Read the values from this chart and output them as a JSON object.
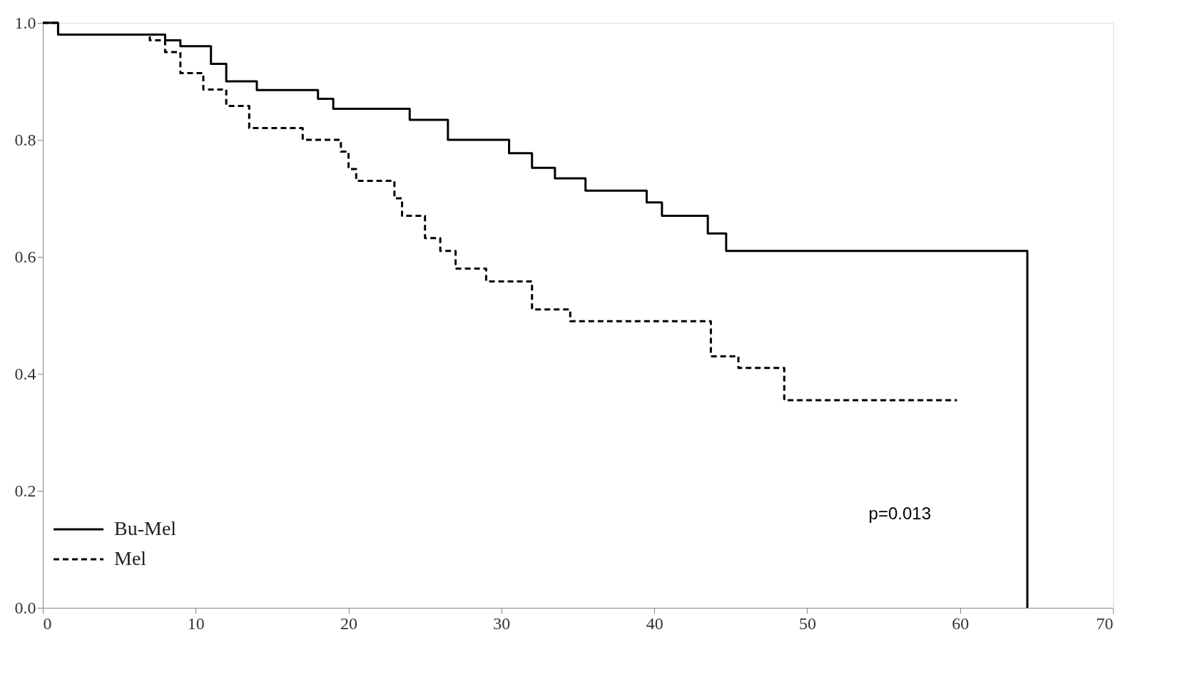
{
  "chart_data": {
    "type": "step",
    "xlim": [
      0,
      70
    ],
    "ylim": [
      0,
      1
    ],
    "xticks": [
      0,
      10,
      20,
      30,
      40,
      50,
      60,
      70
    ],
    "yticks": [
      {
        "value": 0,
        "label": "0.0"
      },
      {
        "value": 0.2,
        "label": "0.2"
      },
      {
        "value": 0.4,
        "label": "0.4"
      },
      {
        "value": 0.6,
        "label": "0.6"
      },
      {
        "value": 0.8,
        "label": "0.8"
      },
      {
        "value": 1,
        "label": "1.0"
      }
    ],
    "series": [
      {
        "name": "Bu-Mel",
        "color": "#000000",
        "line_style": "solid",
        "x": [
          0,
          1,
          8,
          9,
          11,
          12,
          14,
          18,
          19,
          24,
          26.5,
          30.5,
          32,
          33.5,
          35.5,
          39.5,
          40.5,
          43.5,
          44.7,
          64.4,
          64.4
        ],
        "values": [
          1.0,
          0.98,
          0.97,
          0.96,
          0.93,
          0.9,
          0.885,
          0.87,
          0.853,
          0.834,
          0.8,
          0.777,
          0.752,
          0.734,
          0.713,
          0.693,
          0.67,
          0.64,
          0.61,
          0.61,
          0.0
        ]
      },
      {
        "name": "Mel",
        "color": "#000000",
        "line_style": "dashed",
        "x": [
          0,
          1,
          7,
          8,
          9,
          10.5,
          12,
          13.5,
          17,
          19.5,
          20,
          20.5,
          23,
          23.5,
          25,
          26,
          27,
          29,
          32,
          34.5,
          43.7,
          45.5,
          48.5,
          59.8
        ],
        "values": [
          1.0,
          0.98,
          0.97,
          0.95,
          0.914,
          0.886,
          0.858,
          0.82,
          0.8,
          0.78,
          0.75,
          0.73,
          0.7,
          0.67,
          0.632,
          0.61,
          0.58,
          0.558,
          0.51,
          0.49,
          0.43,
          0.41,
          0.355,
          0.355
        ]
      }
    ],
    "legend": "bottom left",
    "grid": false,
    "annotations": [
      "p=0.013"
    ]
  }
}
